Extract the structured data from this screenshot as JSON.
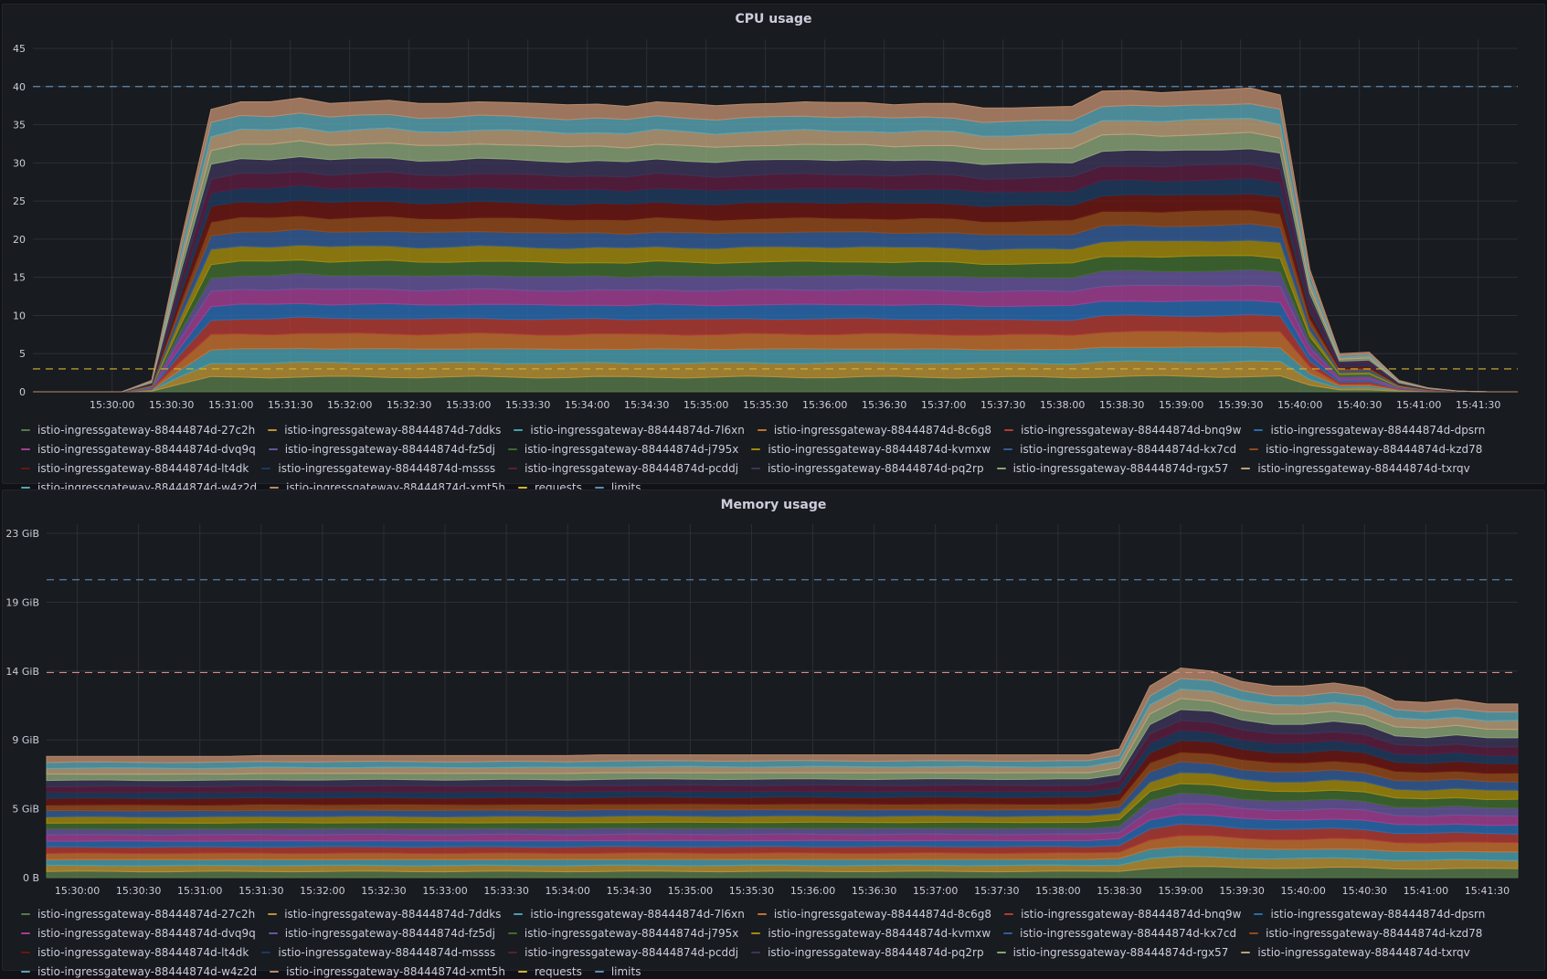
{
  "panels": [
    {
      "id": "cpu",
      "title": "CPU usage",
      "y_tick_labels": [
        "0",
        "5",
        "10",
        "15",
        "20",
        "25",
        "30",
        "35",
        "40",
        "45"
      ],
      "x_tick_labels": [
        "15:30:00",
        "15:30:30",
        "15:31:00",
        "15:31:30",
        "15:32:00",
        "15:32:30",
        "15:33:00",
        "15:33:30",
        "15:34:00",
        "15:34:30",
        "15:35:00",
        "15:35:30",
        "15:36:00",
        "15:36:30",
        "15:37:00",
        "15:37:30",
        "15:38:00",
        "15:38:30",
        "15:39:00",
        "15:39:30",
        "15:40:00",
        "15:40:30",
        "15:41:00",
        "15:41:30"
      ]
    },
    {
      "id": "memory",
      "title": "Memory usage",
      "y_tick_labels": [
        "0 B",
        "5 GiB",
        "9 GiB",
        "14 GiB",
        "19 GiB",
        "23 GiB"
      ],
      "x_tick_labels": [
        "15:30:00",
        "15:30:30",
        "15:31:00",
        "15:31:30",
        "15:32:00",
        "15:32:30",
        "15:33:00",
        "15:33:30",
        "15:34:00",
        "15:34:30",
        "15:35:00",
        "15:35:30",
        "15:36:00",
        "15:36:30",
        "15:37:00",
        "15:37:30",
        "15:38:00",
        "15:38:30",
        "15:39:00",
        "15:39:30",
        "15:40:00",
        "15:40:30",
        "15:41:00",
        "15:41:30"
      ]
    }
  ],
  "legend": [
    {
      "label": "istio-ingressgateway-88444874d-27c2h",
      "color": "#56794a"
    },
    {
      "label": "istio-ingressgateway-88444874d-7ddks",
      "color": "#b99235"
    },
    {
      "label": "istio-ingressgateway-88444874d-7l6xn",
      "color": "#4a9fae"
    },
    {
      "label": "istio-ingressgateway-88444874d-8c6g8",
      "color": "#c5702f"
    },
    {
      "label": "istio-ingressgateway-88444874d-bnq9w",
      "color": "#b23c34"
    },
    {
      "label": "istio-ingressgateway-88444874d-dpsrn",
      "color": "#2a6bb0"
    },
    {
      "label": "istio-ingressgateway-88444874d-dvq9q",
      "color": "#a23f93"
    },
    {
      "label": "istio-ingressgateway-88444874d-fz5dj",
      "color": "#67559b"
    },
    {
      "label": "istio-ingressgateway-88444874d-j795x",
      "color": "#3f6b2f"
    },
    {
      "label": "istio-ingressgateway-88444874d-kvmxw",
      "color": "#a28a0d"
    },
    {
      "label": "istio-ingressgateway-88444874d-kx7cd",
      "color": "#335d97"
    },
    {
      "label": "istio-ingressgateway-88444874d-kzd78",
      "color": "#92491b"
    },
    {
      "label": "istio-ingressgateway-88444874d-lt4dk",
      "color": "#6b1712"
    },
    {
      "label": "istio-ingressgateway-88444874d-mssss",
      "color": "#1d3a5e"
    },
    {
      "label": "istio-ingressgateway-88444874d-pcddj",
      "color": "#5a1d3f"
    },
    {
      "label": "istio-ingressgateway-88444874d-pq2rp",
      "color": "#3b3558"
    },
    {
      "label": "istio-ingressgateway-88444874d-rgx57",
      "color": "#8aa376"
    },
    {
      "label": "istio-ingressgateway-88444874d-txrqv",
      "color": "#bca07a"
    },
    {
      "label": "istio-ingressgateway-88444874d-w4z2d",
      "color": "#58a4b3"
    },
    {
      "label": "istio-ingressgateway-88444874d-xmt5h",
      "color": "#b88a6c"
    },
    {
      "label": "requests",
      "color": "#d4b431"
    },
    {
      "label": "limits",
      "color": "#5e8bb8"
    }
  ],
  "chart_data": [
    {
      "type": "area",
      "title": "CPU usage",
      "stacked": true,
      "x": [
        "15:29:20",
        "15:29:35",
        "15:29:50",
        "15:30:05",
        "15:30:20",
        "15:30:35",
        "15:30:50",
        "15:31:05",
        "15:31:20",
        "15:31:35",
        "15:31:50",
        "15:32:05",
        "15:32:20",
        "15:32:35",
        "15:32:50",
        "15:33:05",
        "15:33:20",
        "15:33:35",
        "15:33:50",
        "15:34:05",
        "15:34:20",
        "15:34:35",
        "15:34:50",
        "15:35:05",
        "15:35:20",
        "15:35:35",
        "15:35:50",
        "15:36:05",
        "15:36:20",
        "15:36:35",
        "15:36:50",
        "15:37:05",
        "15:37:20",
        "15:37:35",
        "15:37:50",
        "15:38:05",
        "15:38:20",
        "15:38:35",
        "15:38:50",
        "15:39:05",
        "15:39:20",
        "15:39:35",
        "15:39:50",
        "15:40:05",
        "15:40:20",
        "15:40:35",
        "15:40:50",
        "15:41:05",
        "15:41:20",
        "15:41:35",
        "15:41:50"
      ],
      "totals": [
        0,
        0,
        0,
        0,
        1.5,
        20,
        37,
        38,
        38,
        38.5,
        37.8,
        38,
        38.2,
        37.8,
        37.8,
        38,
        37.9,
        37.8,
        37.6,
        37.7,
        37.4,
        38,
        37.8,
        37.5,
        37.7,
        37.8,
        38,
        37.9,
        37.9,
        37.6,
        37.8,
        37.8,
        37.2,
        37.2,
        37.3,
        37.4,
        39.4,
        39.5,
        39.2,
        39.4,
        39.6,
        39.8,
        38.9,
        16,
        5,
        5.2,
        1.5,
        0.5,
        0.1,
        0,
        0
      ],
      "series_count": 20,
      "ylim": [
        0,
        45
      ],
      "yticks": [
        0,
        5,
        10,
        15,
        20,
        25,
        30,
        35,
        40,
        45
      ],
      "reference_lines": {
        "requests": 3,
        "limits": 40
      },
      "grid": true,
      "legend_position": "bottom"
    },
    {
      "type": "area",
      "title": "Memory usage",
      "stacked": true,
      "unit": "GiB",
      "x": [
        "15:29:45",
        "15:30:00",
        "15:30:15",
        "15:30:30",
        "15:30:45",
        "15:31:00",
        "15:31:15",
        "15:31:30",
        "15:31:45",
        "15:32:00",
        "15:32:15",
        "15:32:30",
        "15:32:45",
        "15:33:00",
        "15:33:15",
        "15:33:30",
        "15:33:45",
        "15:34:00",
        "15:34:15",
        "15:34:30",
        "15:34:45",
        "15:35:00",
        "15:35:15",
        "15:35:30",
        "15:35:45",
        "15:36:00",
        "15:36:15",
        "15:36:30",
        "15:36:45",
        "15:37:00",
        "15:37:15",
        "15:37:30",
        "15:37:45",
        "15:38:00",
        "15:38:15",
        "15:38:30",
        "15:38:45",
        "15:39:00",
        "15:39:15",
        "15:39:30",
        "15:39:45",
        "15:40:00",
        "15:40:15",
        "15:40:30",
        "15:40:45",
        "15:41:00",
        "15:41:15",
        "15:41:30",
        "15:41:45"
      ],
      "totals": [
        8.1,
        8.1,
        8.1,
        8.1,
        8.1,
        8.1,
        8.1,
        8.15,
        8.15,
        8.15,
        8.15,
        8.15,
        8.15,
        8.15,
        8.15,
        8.15,
        8.15,
        8.15,
        8.2,
        8.2,
        8.2,
        8.2,
        8.2,
        8.2,
        8.2,
        8.2,
        8.2,
        8.2,
        8.2,
        8.2,
        8.2,
        8.2,
        8.2,
        8.2,
        8.2,
        8.6,
        12.8,
        14.0,
        13.8,
        13.1,
        12.8,
        12.8,
        13.0,
        12.7,
        11.8,
        11.7,
        11.9,
        11.6,
        11.6
      ],
      "series_count": 20,
      "ylim": [
        0,
        23
      ],
      "yticks_labels": [
        "0 B",
        "5 GiB",
        "9 GiB",
        "14 GiB",
        "19 GiB",
        "23 GiB"
      ],
      "reference_lines": {
        "requests": 13.7,
        "limits": 19.9
      },
      "grid": true,
      "legend_position": "bottom"
    }
  ]
}
